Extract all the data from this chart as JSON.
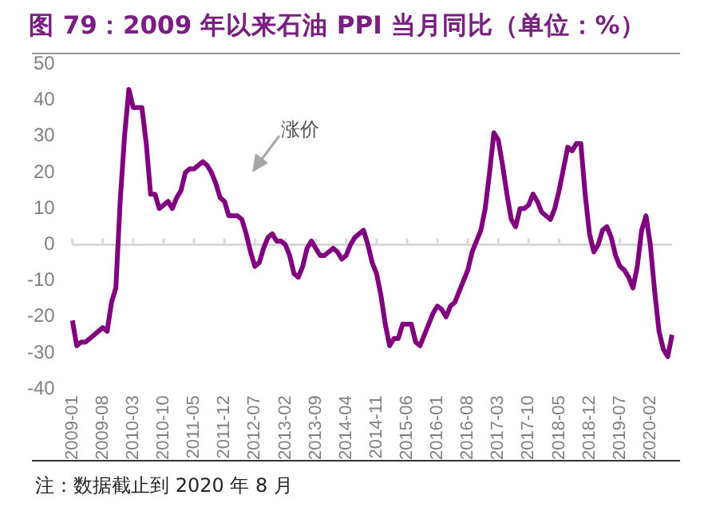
{
  "chart_data": {
    "type": "line",
    "title": "图 79：2009 年以来石油 PPI 当月同比（单位：%）",
    "categories": [
      "2009-01",
      null,
      null,
      null,
      null,
      null,
      null,
      "2009-08",
      null,
      null,
      null,
      null,
      null,
      null,
      "2010-03",
      null,
      null,
      null,
      null,
      null,
      null,
      "2010-10",
      null,
      null,
      null,
      null,
      null,
      null,
      "2011-05",
      null,
      null,
      null,
      null,
      null,
      null,
      "2011-12",
      null,
      null,
      null,
      null,
      null,
      null,
      "2012-07",
      null,
      null,
      null,
      null,
      null,
      null,
      "2013-02",
      null,
      null,
      null,
      null,
      null,
      null,
      "2013-09",
      null,
      null,
      null,
      null,
      null,
      null,
      "2014-04",
      null,
      null,
      null,
      null,
      null,
      null,
      "2014-11",
      null,
      null,
      null,
      null,
      null,
      null,
      "2015-06",
      null,
      null,
      null,
      null,
      null,
      null,
      "2016-01",
      null,
      null,
      null,
      null,
      null,
      null,
      "2016-08",
      null,
      null,
      null,
      null,
      null,
      null,
      "2017-03",
      null,
      null,
      null,
      null,
      null,
      null,
      "2017-10",
      null,
      null,
      null,
      null,
      null,
      null,
      "2018-05",
      null,
      null,
      null,
      null,
      null,
      null,
      "2018-12",
      null,
      null,
      null,
      null,
      null,
      null,
      "2019-07",
      null,
      null,
      null,
      null,
      null,
      null,
      "2020-02",
      null,
      null,
      null,
      null,
      null
    ],
    "series": [
      {
        "color": "#800080",
        "values": [
          -21,
          -28,
          -27,
          -27,
          -26,
          -25,
          -24,
          -23,
          -24,
          -16,
          -12,
          12,
          30,
          43,
          38,
          38,
          38,
          28,
          14,
          14,
          10,
          11,
          12,
          10,
          13,
          15,
          20,
          21,
          21,
          22,
          23,
          22,
          20,
          17,
          13,
          12,
          8,
          8,
          8,
          7,
          3,
          -2,
          -6,
          -5,
          -1,
          2,
          3,
          1,
          1,
          0,
          -3,
          -8,
          -9,
          -6,
          -1,
          1,
          -1,
          -3,
          -3,
          -2,
          -1,
          -2,
          -4,
          -3,
          0,
          2,
          3,
          4,
          0,
          -5,
          -8,
          -14,
          -22,
          -28,
          -26,
          -26,
          -22,
          -22,
          -22,
          -27,
          -28,
          -25,
          -22,
          -19,
          -17,
          -18,
          -20,
          -17,
          -16,
          -13,
          -10,
          -7,
          -2,
          1,
          4,
          10,
          20,
          31,
          29,
          22,
          14,
          7,
          5,
          10,
          10,
          11,
          14,
          12,
          9,
          8,
          7,
          10,
          15,
          21,
          27,
          26,
          28,
          28,
          14,
          3,
          -2,
          0,
          4,
          5,
          2,
          -3,
          -6,
          -7,
          -9,
          -12,
          -6,
          4,
          8,
          0,
          -13,
          -24,
          -29,
          -31,
          -25
        ]
      }
    ],
    "ylim": [
      -40,
      50
    ],
    "yticks": [
      -40,
      -30,
      -20,
      -10,
      0,
      10,
      20,
      30,
      40,
      50
    ],
    "grid": false,
    "legend": false,
    "marker": "none",
    "line_style": "solid",
    "ref_lines": [
      {
        "axis": "y",
        "value": 0,
        "color": "#d9d9d9"
      }
    ],
    "annotations": [
      "涨价",
      "注：数据截止到 2020 年 8 月"
    ]
  }
}
